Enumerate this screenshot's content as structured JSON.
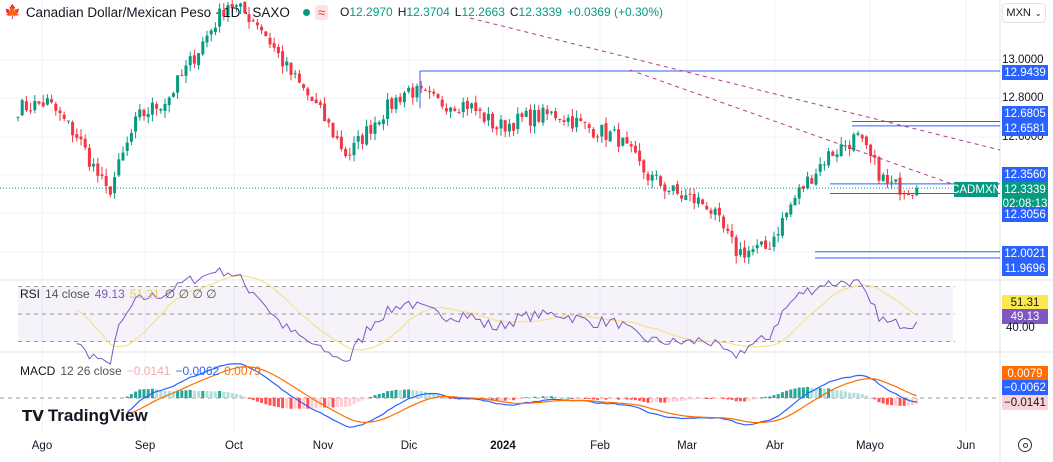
{
  "header": {
    "symbol": "Canadian Dollar/Mexican Peso · 1D · SAXO",
    "open_label": "O",
    "open": "12.2970",
    "high_label": "H",
    "high": "12.3704",
    "low_label": "L",
    "low": "12.2663",
    "close_label": "C",
    "close": "12.3339",
    "change": "+0.0369 (+0.30%)",
    "currency": "MXN"
  },
  "colors": {
    "up": "#089981",
    "down": "#f23645",
    "rsi": "#7e57c2",
    "rsi_ma": "#f7e18a",
    "macd": "#2962ff",
    "signal": "#ff6d00",
    "level": "#2962ff"
  },
  "price_axis": {
    "ticks": [
      "13.0000",
      "12.8000",
      "12.6000"
    ],
    "levels": [
      "12.9439",
      "12.6805",
      "12.6581",
      "12.3560",
      "12.3056",
      "12.0021",
      "11.9696"
    ],
    "last_price": "12.3339",
    "countdown": "02:08:13",
    "symbol_tag": "CADMXN"
  },
  "rsi": {
    "label": "RSI",
    "params": "14 close",
    "value": "49.13",
    "ma_value": "51.31",
    "placeholders": "∅ ∅ ∅ ∅",
    "axis_tick": "40.00"
  },
  "macd": {
    "label": "MACD",
    "params": "12 26 close",
    "histogram": "−0.0141",
    "macd": "−0.0062",
    "signal": "0.0079"
  },
  "time_axis": [
    "Ago",
    "Sep",
    "Oct",
    "Nov",
    "Dic",
    "2024",
    "Feb",
    "Mar",
    "Abr",
    "Mayo",
    "Jun"
  ],
  "logo": "TradingView",
  "chart_data": {
    "type": "candlestick",
    "anchor_closes": [
      12.75,
      12.78,
      12.6,
      12.3,
      12.7,
      12.8,
      13.05,
      13.3,
      13.2,
      12.95,
      12.75,
      12.5,
      12.7,
      12.85,
      12.78,
      12.77,
      12.65,
      12.7,
      12.72,
      12.65,
      12.6,
      12.4,
      12.3,
      12.25,
      12.0,
      12.02,
      12.3,
      12.5,
      12.6,
      12.35,
      12.33
    ],
    "ylim": [
      11.95,
      13.1
    ]
  }
}
